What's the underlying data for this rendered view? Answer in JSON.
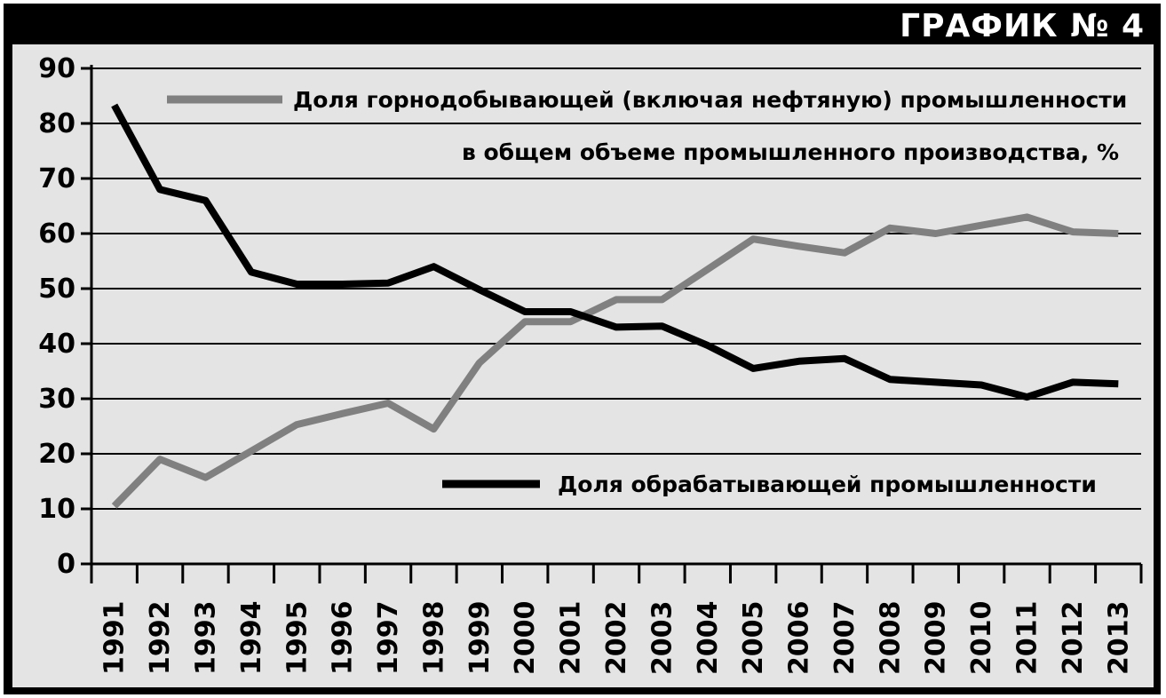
{
  "header": {
    "badge": "ГРАФИК № 4"
  },
  "colors": {
    "frame": "#000000",
    "panel": "#e4e4e4",
    "mining": "#808080",
    "manufacturing": "#000000",
    "grid": "#000000"
  },
  "chart_data": {
    "type": "line",
    "x": [
      1991,
      1992,
      1993,
      1994,
      1995,
      1996,
      1997,
      1998,
      1999,
      2000,
      2001,
      2002,
      2003,
      2004,
      2005,
      2006,
      2007,
      2008,
      2009,
      2010,
      2011,
      2012,
      2013
    ],
    "ylim": [
      0,
      90
    ],
    "yticks": [
      0,
      10,
      20,
      30,
      40,
      50,
      60,
      70,
      80,
      90
    ],
    "grid": true,
    "series": [
      {
        "name": "Доля горнодобывающей (включая нефтяную) промышленности",
        "name_line2": "в общем объеме промышленного производства, %",
        "color": "#808080",
        "values": [
          10.5,
          19,
          15.7,
          20.5,
          25.3,
          27.3,
          29.2,
          24.5,
          36.5,
          44,
          44,
          48,
          48,
          53.5,
          59,
          57.7,
          56.5,
          61,
          60,
          61.5,
          63,
          60.3,
          60
        ]
      },
      {
        "name": "Доля  обрабатывающей промышленности",
        "color": "#000000",
        "values": [
          83.3,
          68,
          66,
          53,
          50.8,
          50.8,
          51,
          54,
          49.8,
          45.8,
          45.8,
          43,
          43.2,
          39.7,
          35.5,
          36.8,
          37.3,
          33.5,
          33,
          32.5,
          30.3,
          33,
          32.7
        ]
      }
    ]
  }
}
